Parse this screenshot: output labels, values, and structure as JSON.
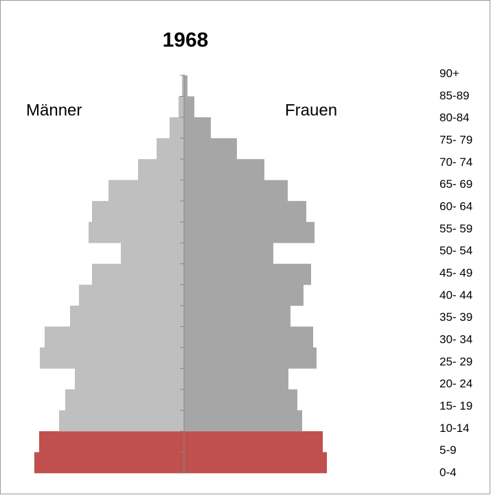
{
  "chart_data": {
    "type": "population_pyramid",
    "title": "1968",
    "categories": [
      "0-4",
      "5-9",
      "10-14",
      "15- 19",
      "20- 24",
      "25- 29",
      "30- 34",
      "35- 39",
      "40- 44",
      "45- 49",
      "50- 54",
      "55- 59",
      "60- 64",
      "65- 69",
      "70- 74",
      "75- 79",
      "80-84",
      "85-89",
      "90+"
    ],
    "series": [
      {
        "name": "Männer",
        "side": "left",
        "color": "#bfbfbf",
        "highlight_color": "#c0504d",
        "values": [
          218,
          211,
          182,
          173,
          159,
          210,
          203,
          166,
          153,
          134,
          92,
          139,
          134,
          110,
          67,
          40,
          21,
          8,
          3
        ]
      },
      {
        "name": "Frauen",
        "side": "right",
        "color": "#a6a6a6",
        "highlight_color": "#c0504d",
        "values": [
          208,
          202,
          172,
          165,
          152,
          193,
          188,
          155,
          174,
          185,
          130,
          190,
          178,
          151,
          117,
          77,
          39,
          15,
          5
        ]
      }
    ],
    "highlight": [
      0,
      1
    ],
    "xlim": [
      0,
      220
    ]
  }
}
